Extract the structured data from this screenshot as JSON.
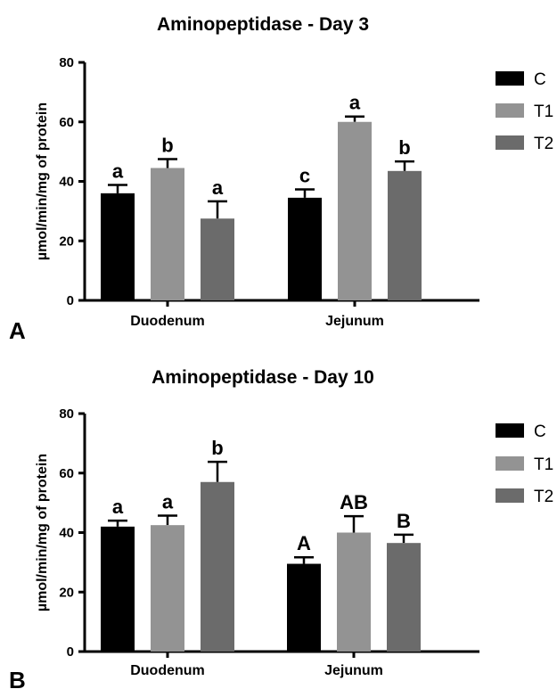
{
  "chart_data": [
    {
      "panel": "A",
      "type": "bar",
      "title": "Aminopeptidase - Day 3",
      "ylabel": "µmol/min/mg of protein",
      "xlabel": "",
      "ylim": [
        0,
        80
      ],
      "yticks": [
        0,
        20,
        40,
        60,
        80
      ],
      "categories": [
        "Duodenum",
        "Jejunum"
      ],
      "series": [
        {
          "name": "C",
          "color": "#000000",
          "values": [
            36,
            34.5
          ],
          "errors": [
            2.8,
            2.8
          ],
          "labels": [
            "a",
            "c"
          ]
        },
        {
          "name": "T1",
          "color": "#939393",
          "values": [
            44.5,
            60
          ],
          "errors": [
            3,
            1.8
          ],
          "labels": [
            "b",
            "a"
          ]
        },
        {
          "name": "T2",
          "color": "#6b6b6b",
          "values": [
            27.5,
            43.5
          ],
          "errors": [
            5.8,
            3.2
          ],
          "labels": [
            "a",
            "b"
          ]
        }
      ],
      "legend": "right"
    },
    {
      "panel": "B",
      "type": "bar",
      "title": "Aminopeptidase - Day 10",
      "ylabel": "µmol/min/mg of protein",
      "xlabel": "",
      "ylim": [
        0,
        80
      ],
      "yticks": [
        0,
        20,
        40,
        60,
        80
      ],
      "categories": [
        "Duodenum",
        "Jejunum"
      ],
      "series": [
        {
          "name": "C",
          "color": "#000000",
          "values": [
            42,
            29.5
          ],
          "errors": [
            2,
            2.2
          ],
          "labels": [
            "a",
            "A"
          ]
        },
        {
          "name": "T1",
          "color": "#939393",
          "values": [
            42.5,
            40
          ],
          "errors": [
            3.2,
            5.5
          ],
          "labels": [
            "a",
            "AB"
          ]
        },
        {
          "name": "T2",
          "color": "#6b6b6b",
          "values": [
            57,
            36.5
          ],
          "errors": [
            6.8,
            2.8
          ],
          "labels": [
            "b",
            "B"
          ]
        }
      ],
      "legend": "right"
    }
  ]
}
